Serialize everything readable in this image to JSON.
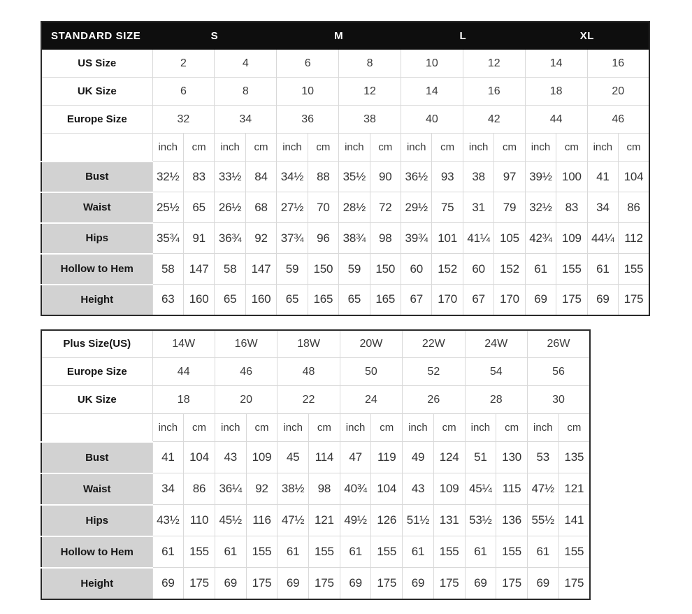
{
  "colors": {
    "header_bg": "#0e0e0e",
    "header_text": "#ffffff",
    "label_bg": "#d2d2d2",
    "grid_line": "#d9d9d9",
    "outer_border": "#2a2a2a",
    "text": "#333333"
  },
  "standard_table": {
    "title": "STANDARD SIZE",
    "size_groups": [
      "S",
      "M",
      "L",
      "XL"
    ],
    "unit_labels": [
      "inch",
      "cm"
    ],
    "conversion_rows": [
      {
        "label": "US Size",
        "values": [
          "2",
          "4",
          "6",
          "8",
          "10",
          "12",
          "14",
          "16"
        ]
      },
      {
        "label": "UK Size",
        "values": [
          "6",
          "8",
          "10",
          "12",
          "14",
          "16",
          "18",
          "20"
        ]
      },
      {
        "label": "Europe Size",
        "values": [
          "32",
          "34",
          "36",
          "38",
          "40",
          "42",
          "44",
          "46"
        ]
      }
    ],
    "measurement_rows": [
      {
        "label": "Bust",
        "values": [
          "32½",
          "83",
          "33½",
          "84",
          "34½",
          "88",
          "35½",
          "90",
          "36½",
          "93",
          "38",
          "97",
          "39½",
          "100",
          "41",
          "104"
        ]
      },
      {
        "label": "Waist",
        "values": [
          "25½",
          "65",
          "26½",
          "68",
          "27½",
          "70",
          "28½",
          "72",
          "29½",
          "75",
          "31",
          "79",
          "32½",
          "83",
          "34",
          "86"
        ]
      },
      {
        "label": "Hips",
        "values": [
          "35¾",
          "91",
          "36¾",
          "92",
          "37¾",
          "96",
          "38¾",
          "98",
          "39¾",
          "101",
          "41¼",
          "105",
          "42¾",
          "109",
          "44¼",
          "112"
        ]
      },
      {
        "label": "Hollow to Hem",
        "values": [
          "58",
          "147",
          "58",
          "147",
          "59",
          "150",
          "59",
          "150",
          "60",
          "152",
          "60",
          "152",
          "61",
          "155",
          "61",
          "155"
        ]
      },
      {
        "label": "Height",
        "values": [
          "63",
          "160",
          "65",
          "160",
          "65",
          "165",
          "65",
          "165",
          "67",
          "170",
          "67",
          "170",
          "69",
          "175",
          "69",
          "175"
        ]
      }
    ]
  },
  "plus_table": {
    "unit_labels": [
      "inch",
      "cm"
    ],
    "conversion_rows": [
      {
        "label": "Plus Size(US)",
        "values": [
          "14W",
          "16W",
          "18W",
          "20W",
          "22W",
          "24W",
          "26W"
        ]
      },
      {
        "label": "Europe Size",
        "values": [
          "44",
          "46",
          "48",
          "50",
          "52",
          "54",
          "56"
        ]
      },
      {
        "label": "UK Size",
        "values": [
          "18",
          "20",
          "22",
          "24",
          "26",
          "28",
          "30"
        ]
      }
    ],
    "measurement_rows": [
      {
        "label": "Bust",
        "values": [
          "41",
          "104",
          "43",
          "109",
          "45",
          "114",
          "47",
          "119",
          "49",
          "124",
          "51",
          "130",
          "53",
          "135"
        ]
      },
      {
        "label": "Waist",
        "values": [
          "34",
          "86",
          "36¼",
          "92",
          "38½",
          "98",
          "40¾",
          "104",
          "43",
          "109",
          "45¼",
          "115",
          "47½",
          "121"
        ]
      },
      {
        "label": "Hips",
        "values": [
          "43½",
          "110",
          "45½",
          "116",
          "47½",
          "121",
          "49½",
          "126",
          "51½",
          "131",
          "53½",
          "136",
          "55½",
          "141"
        ]
      },
      {
        "label": "Hollow to Hem",
        "values": [
          "61",
          "155",
          "61",
          "155",
          "61",
          "155",
          "61",
          "155",
          "61",
          "155",
          "61",
          "155",
          "61",
          "155"
        ]
      },
      {
        "label": "Height",
        "values": [
          "69",
          "175",
          "69",
          "175",
          "69",
          "175",
          "69",
          "175",
          "69",
          "175",
          "69",
          "175",
          "69",
          "175"
        ]
      }
    ]
  }
}
